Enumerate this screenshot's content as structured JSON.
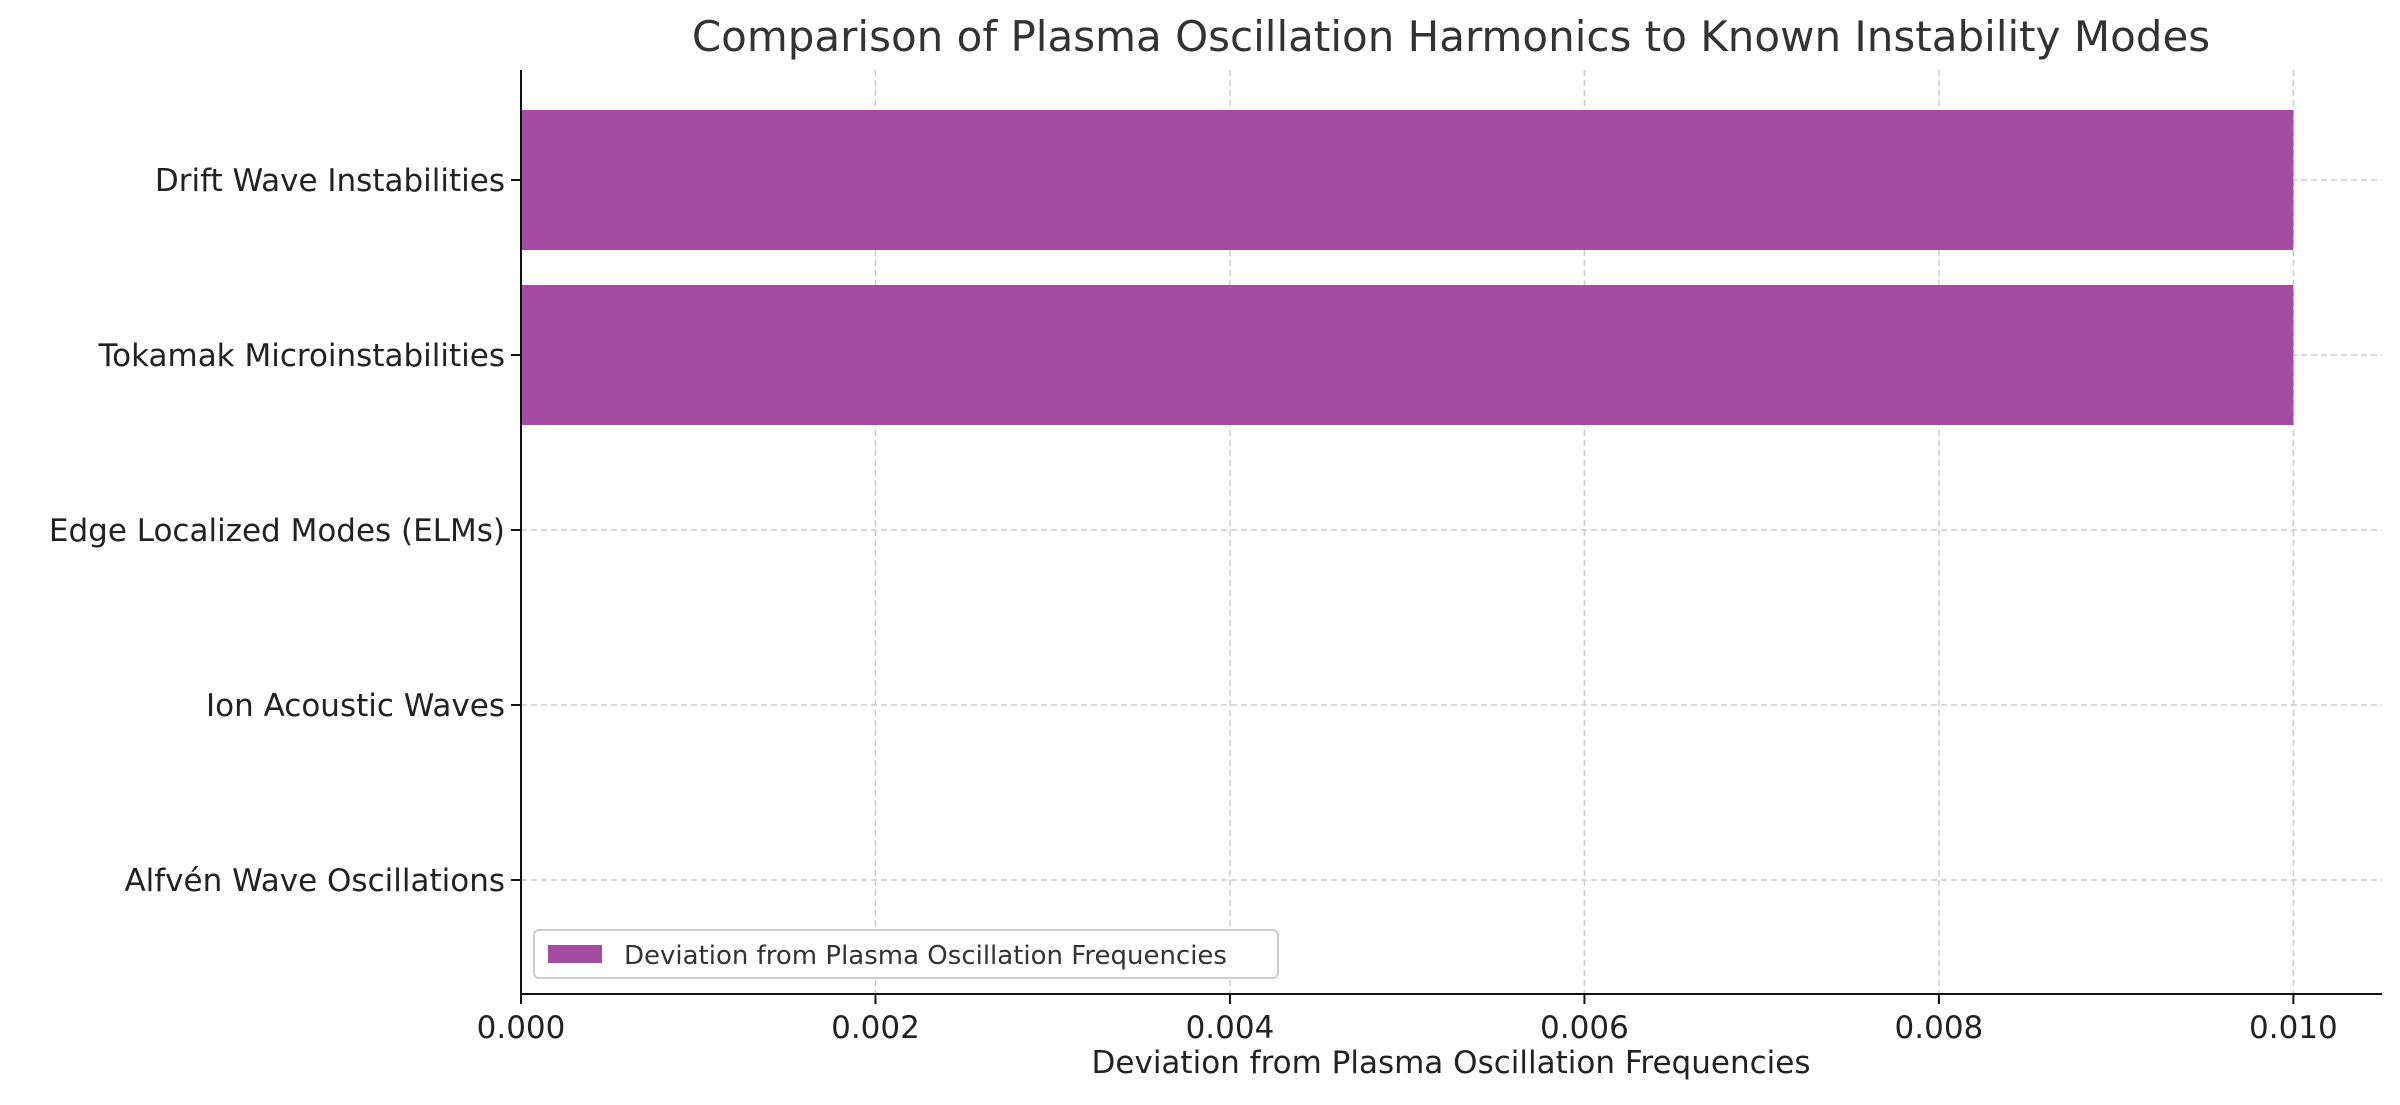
{
  "chart_data": {
    "type": "bar",
    "orientation": "horizontal",
    "title": "Comparison of Plasma Oscillation Harmonics to Known Instability Modes",
    "xlabel": "Deviation from Plasma Oscillation Frequencies",
    "ylabel": "",
    "categories": [
      "Alfvén Wave Oscillations",
      "Ion Acoustic Waves",
      "Edge Localized Modes (ELMs)",
      "Tokamak Microinstabilities",
      "Drift Wave Instabilities"
    ],
    "series": [
      {
        "name": "Deviation from Plasma Oscillation Frequencies",
        "values": [
          0,
          0,
          0,
          0.01,
          0.01
        ],
        "color": "#a44ca4"
      }
    ],
    "xlim": [
      0,
      0.0105
    ],
    "xticks": [
      0.0,
      0.002,
      0.004,
      0.006,
      0.008,
      0.01
    ],
    "xtick_labels": [
      "0.000",
      "0.002",
      "0.004",
      "0.006",
      "0.008",
      "0.010"
    ],
    "grid": true,
    "legend_position": "lower-left"
  }
}
